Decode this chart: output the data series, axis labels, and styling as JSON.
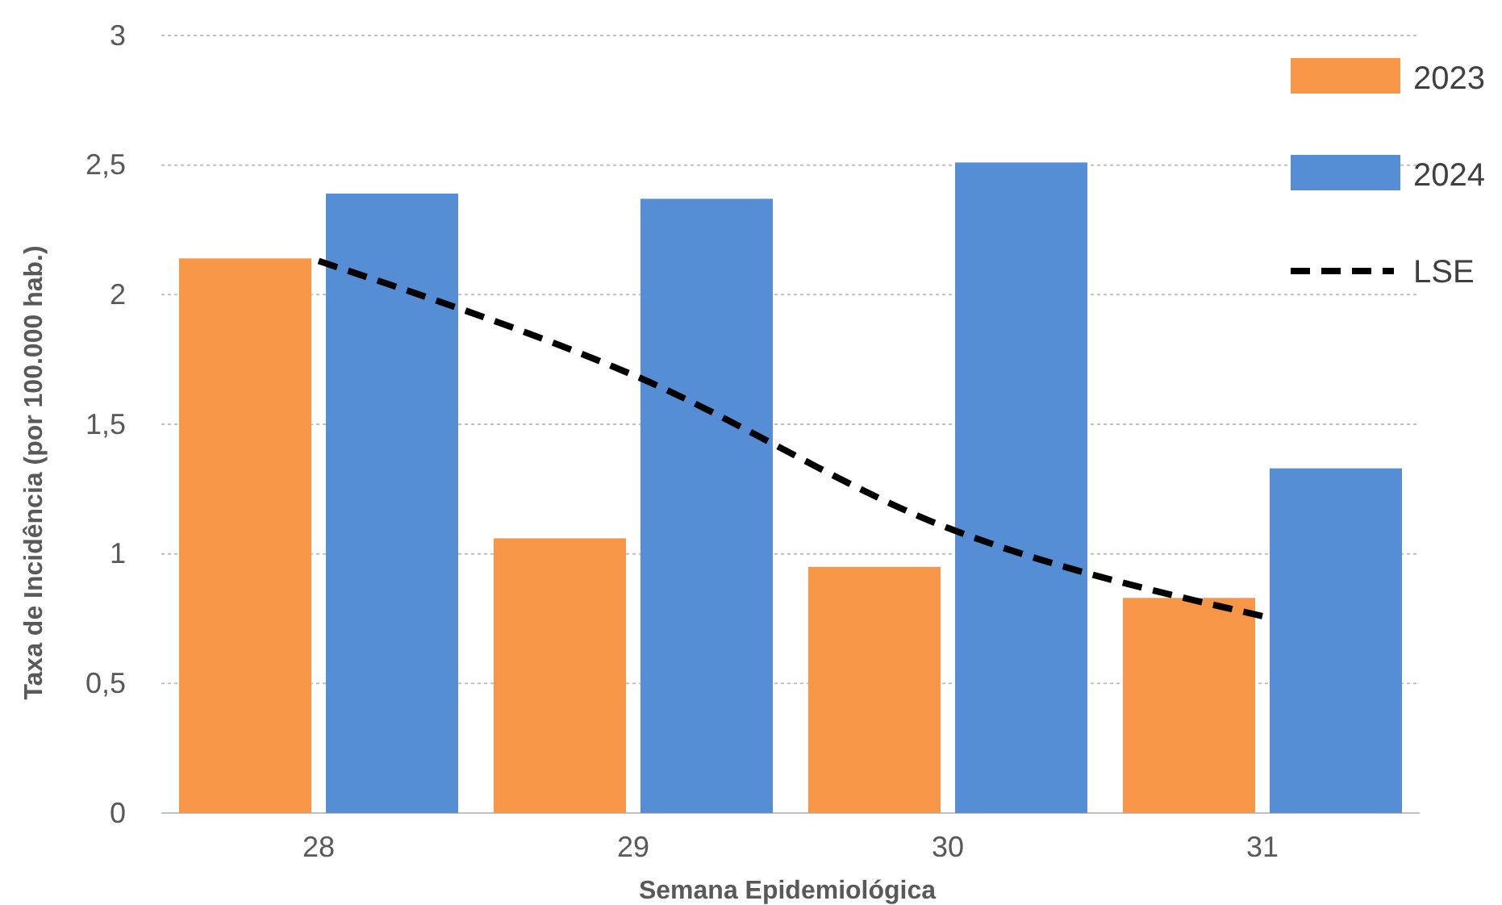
{
  "chart_data": {
    "type": "bar",
    "xlabel": "Semana Epidemiológica",
    "ylabel": "Taxa de Incidência (por 100.000 hab.)",
    "categories": [
      "28",
      "29",
      "30",
      "31"
    ],
    "series": [
      {
        "name": "2023",
        "color": "#f79646",
        "values": [
          2.14,
          1.06,
          0.95,
          0.83
        ]
      },
      {
        "name": "2024",
        "color": "#558ed5",
        "values": [
          2.39,
          2.37,
          2.51,
          1.33
        ]
      },
      {
        "name": "LSE",
        "type": "line",
        "color": "#000000",
        "line_style": "dashed",
        "marker": "none",
        "values": [
          2.13,
          1.69,
          1.1,
          0.76
        ]
      }
    ],
    "ylim": [
      0,
      3
    ],
    "yticks": [
      0,
      {
        "value": 0.5,
        "label": "0,5"
      },
      1,
      {
        "value": 1.5,
        "label": "1,5"
      },
      2,
      {
        "value": 2.5,
        "label": "2,5"
      },
      3
    ],
    "grid": "y",
    "legend": "top right"
  }
}
